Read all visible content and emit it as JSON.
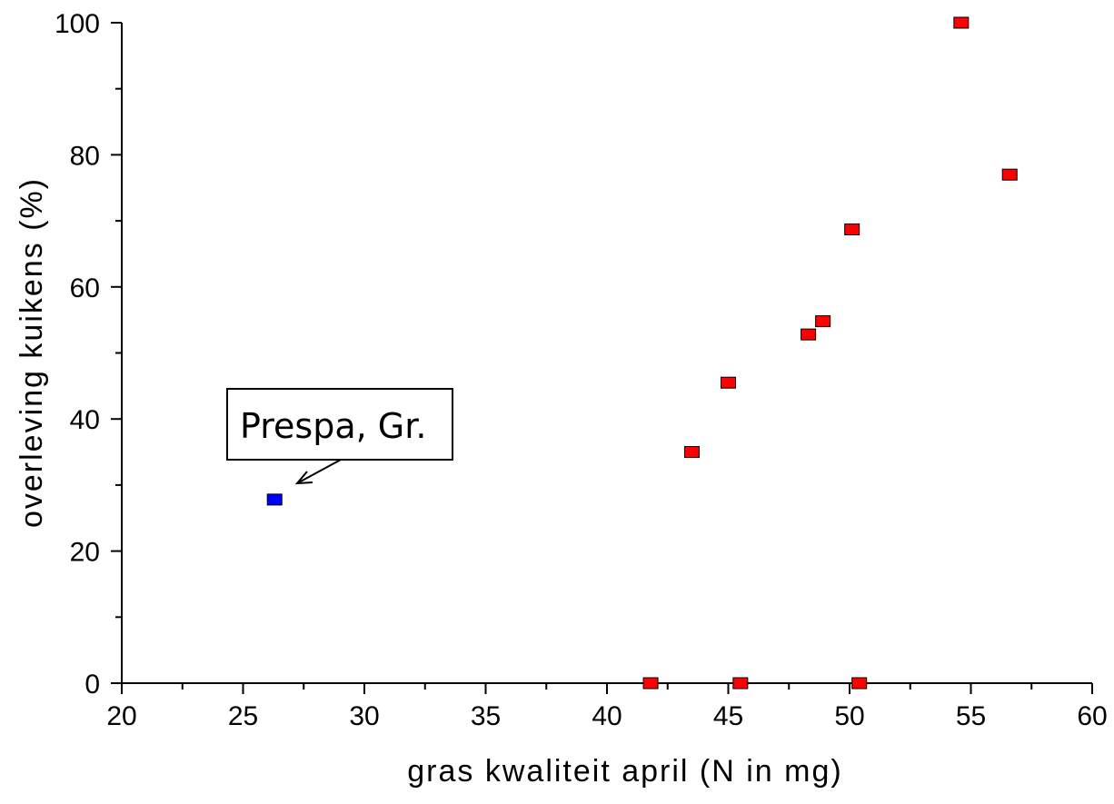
{
  "chart_data": {
    "type": "scatter",
    "xlabel": "gras kwaliteit april (N in mg)",
    "ylabel": "overleving kuikens (%)",
    "xlim": [
      20,
      60
    ],
    "ylim": [
      0,
      100
    ],
    "x_ticks": [
      20,
      25,
      30,
      35,
      40,
      45,
      50,
      55,
      60
    ],
    "y_ticks": [
      0,
      20,
      40,
      60,
      80,
      100
    ],
    "grid": false,
    "series": [
      {
        "color": "#ff0000",
        "points": [
          {
            "x": 41.8,
            "y": 0
          },
          {
            "x": 43.5,
            "y": 35
          },
          {
            "x": 45.0,
            "y": 45.5
          },
          {
            "x": 45.5,
            "y": 0
          },
          {
            "x": 48.3,
            "y": 52.8
          },
          {
            "x": 48.9,
            "y": 54.8
          },
          {
            "x": 50.1,
            "y": 68.7
          },
          {
            "x": 50.4,
            "y": 0
          },
          {
            "x": 54.6,
            "y": 100
          },
          {
            "x": 56.6,
            "y": 77
          }
        ]
      },
      {
        "color": "#0000ff",
        "points": [
          {
            "x": 26.3,
            "y": 27.8
          }
        ]
      }
    ],
    "annotations": [
      {
        "text": "Prespa, Gr.",
        "target": {
          "x": 26.3,
          "y": 27.8
        }
      }
    ]
  }
}
